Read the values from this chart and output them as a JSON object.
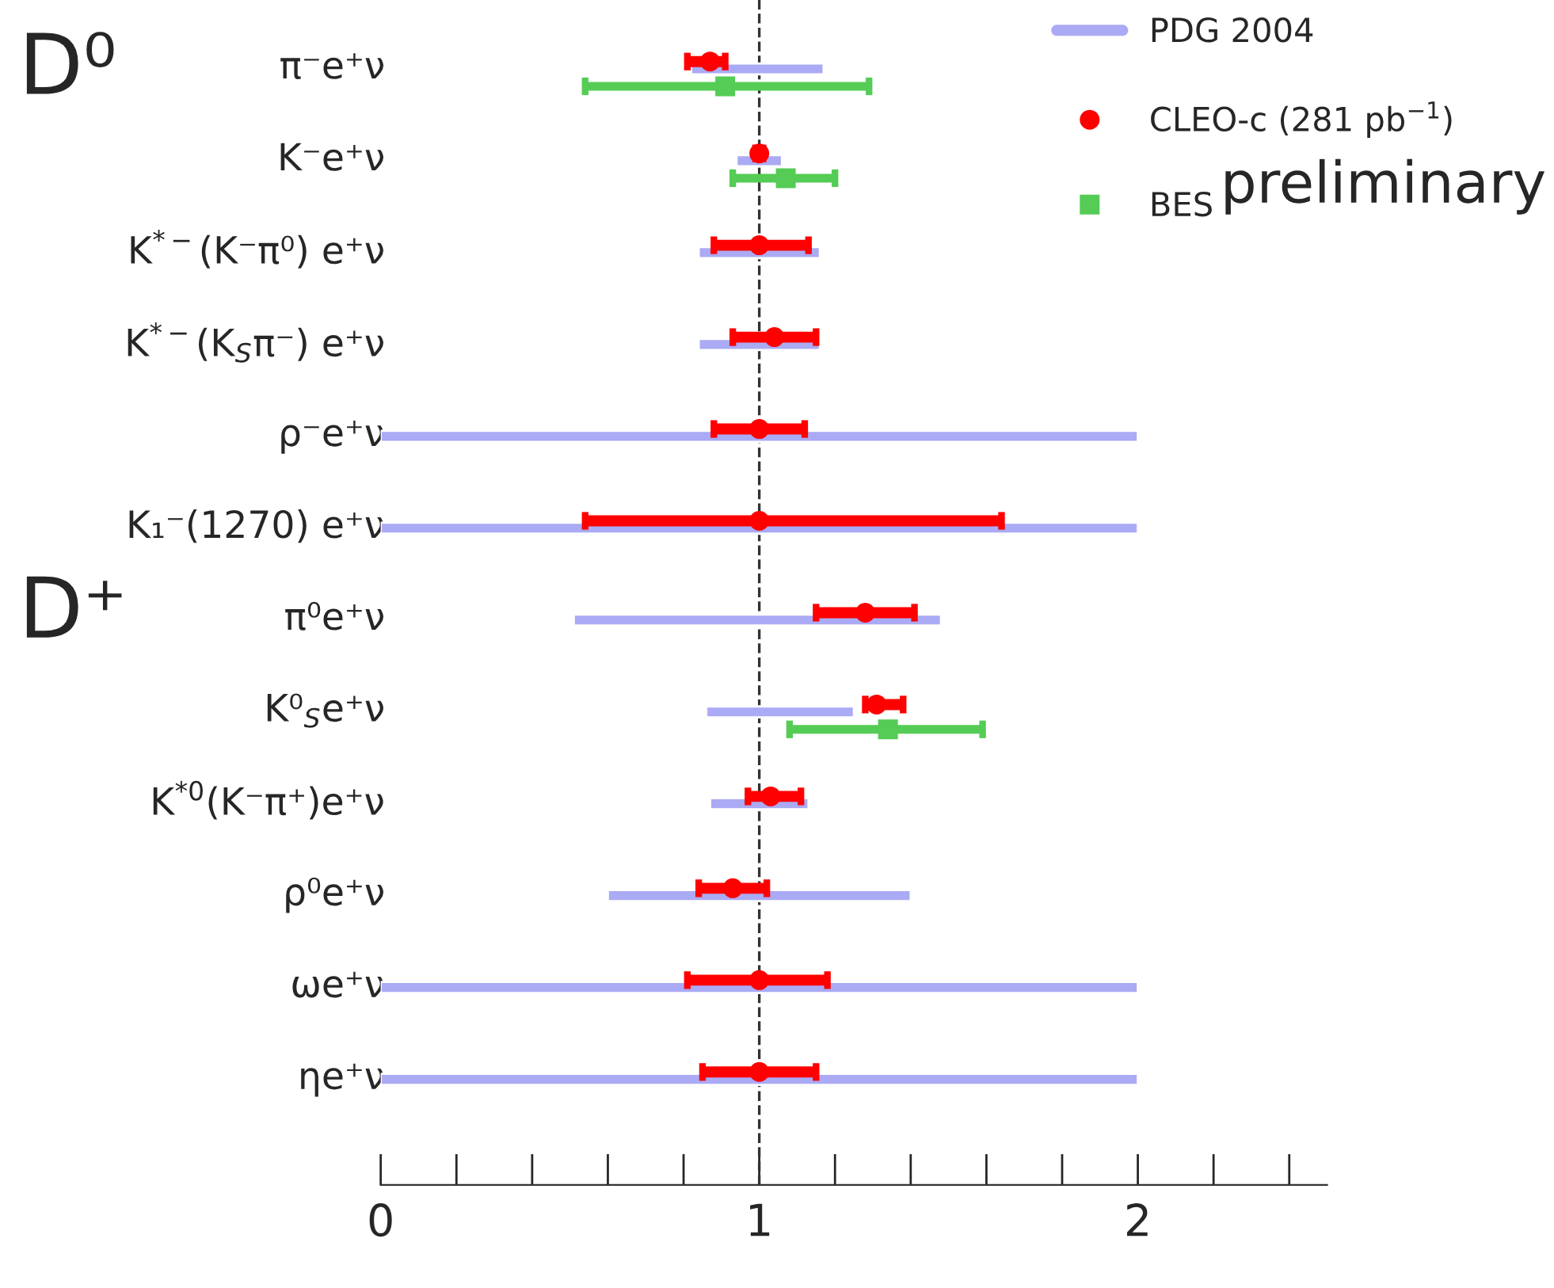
{
  "chart_data": {
    "type": "scatter",
    "orientation": "horizontal",
    "categories": [
      "π⁻e⁺ν",
      "K⁻e⁺ν",
      "K$^{*−}$(K⁻π⁰) e⁺ν",
      "K$^{*−}$(K$_{S}$π⁻) e⁺ν",
      "ρ⁻e⁺ν",
      "K₁⁻(1270) e⁺ν",
      "π⁰e⁺ν",
      "K⁰$_{S}$e⁺ν",
      "K$^{*0}$(K⁻π⁺)e⁺ν",
      "ρ⁰e⁺ν",
      "ωe⁺ν",
      "ηe⁺ν"
    ],
    "series": [
      {
        "name": "PDG 2004",
        "type": "bar",
        "color": "#aaaaf5",
        "base": [
          0.82,
          0.94,
          0.84,
          0.84,
          0,
          0,
          0.51,
          0.86,
          0.87,
          0.6,
          0,
          0
        ],
        "values": [
          0.35,
          0.12,
          0.32,
          0.32,
          2,
          2,
          0.97,
          0.39,
          0.26,
          0.8,
          2,
          2
        ]
      },
      {
        "name": "CLEO-c (281 pb$^{−1}$)",
        "color": "#ff0000",
        "marker": "circle",
        "values": [
          0.87,
          1.0,
          1.0,
          1.04,
          1.0,
          1.0,
          1.28,
          1.31,
          1.03,
          0.93,
          1.0,
          1.0
        ],
        "errors": [
          [
            0.81,
            0.91
          ],
          [
            0.99,
            1.01
          ],
          [
            0.88,
            1.13
          ],
          [
            0.93,
            1.15
          ],
          [
            0.88,
            1.12
          ],
          [
            0.54,
            1.64
          ],
          [
            1.15,
            1.41
          ],
          [
            1.28,
            1.38
          ],
          [
            0.97,
            1.11
          ],
          [
            0.84,
            1.02
          ],
          [
            0.81,
            1.18
          ],
          [
            0.85,
            1.15
          ]
        ]
      },
      {
        "name": "BES",
        "color": "#55cc55",
        "marker": "square",
        "values": [
          0.91,
          1.07,
          null,
          null,
          null,
          null,
          null,
          1.34,
          null,
          null,
          null,
          null
        ],
        "errors": [
          [
            0.54,
            1.29
          ],
          [
            0.93,
            1.2
          ],
          null,
          null,
          null,
          null,
          null,
          [
            1.08,
            1.59
          ],
          null,
          null,
          null,
          null
        ]
      }
    ],
    "xlim": [
      0,
      2.5
    ],
    "xticks": [
      0,
      1,
      2
    ],
    "ref_lines": [
      {
        "axis": "x",
        "value": 1,
        "color": "#333333",
        "line_style": "dashed"
      }
    ],
    "annotations": [
      "D⁰",
      "D⁺",
      "preliminary"
    ],
    "legend": "top right"
  }
}
